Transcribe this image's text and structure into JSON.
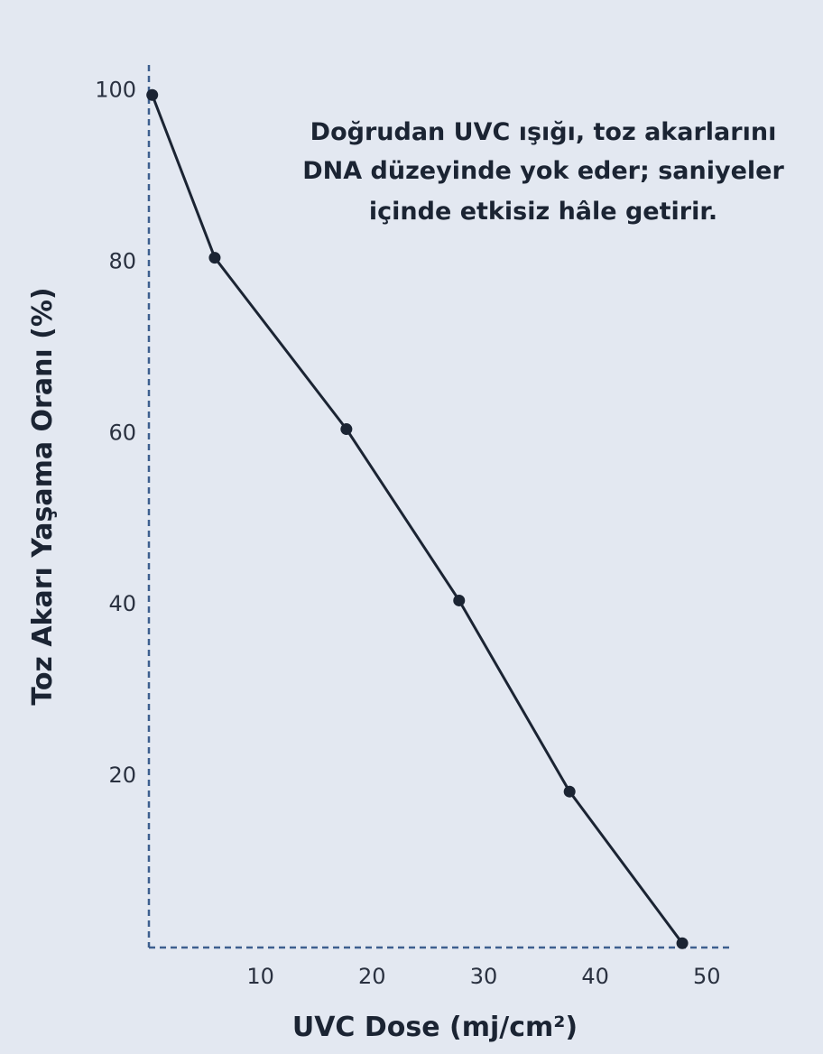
{
  "chart_data": {
    "type": "line",
    "xlabel": "UVC Dose (mj/cm²)",
    "ylabel": "Toz Akarı Yaşama Oranı (%)",
    "x_ticks": [
      "10",
      "20",
      "30",
      "40",
      "50"
    ],
    "y_ticks": [
      "100",
      "80",
      "60",
      "40",
      "20"
    ],
    "xlim": [
      0,
      52
    ],
    "ylim": [
      0,
      103
    ],
    "grid": false,
    "annotation": [
      "Doğrudan UVC ışığı, toz akarlarını",
      "DNA düzeyinde yok eder; saniyeler",
      "içinde etkisiz hâle getirir."
    ],
    "series": [
      {
        "x": [
          0.3,
          5.9,
          17.7,
          27.8,
          37.7,
          47.8
        ],
        "y": [
          99.5,
          80.5,
          60.5,
          40.5,
          18.2,
          0.5
        ]
      }
    ]
  },
  "colors": {
    "background": "#e3e8f1",
    "line": "#1b2433",
    "axis": "#3d5f8f"
  }
}
